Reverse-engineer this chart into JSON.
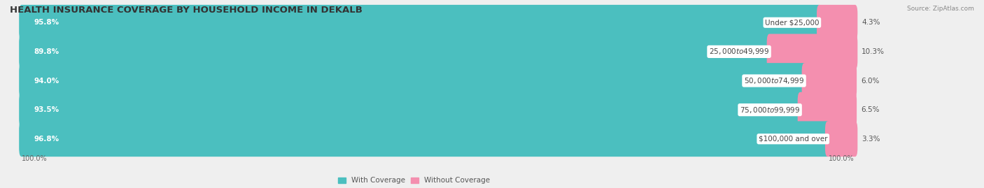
{
  "title": "HEALTH INSURANCE COVERAGE BY HOUSEHOLD INCOME IN DEKALB",
  "source": "Source: ZipAtlas.com",
  "categories": [
    "Under $25,000",
    "$25,000 to $49,999",
    "$50,000 to $74,999",
    "$75,000 to $99,999",
    "$100,000 and over"
  ],
  "with_coverage": [
    95.8,
    89.8,
    94.0,
    93.5,
    96.8
  ],
  "without_coverage": [
    4.3,
    10.3,
    6.0,
    6.5,
    3.3
  ],
  "coverage_color": "#4BBFBF",
  "no_coverage_color": "#F48FAF",
  "bg_color": "#efefef",
  "bar_bg_color": "#ffffff",
  "title_fontsize": 9.5,
  "label_fontsize": 7.5,
  "pct_fontsize": 7.5,
  "tick_fontsize": 7,
  "legend_fontsize": 7.5,
  "bar_height": 0.62,
  "x_left_label": "100.0%",
  "x_right_label": "100.0%"
}
